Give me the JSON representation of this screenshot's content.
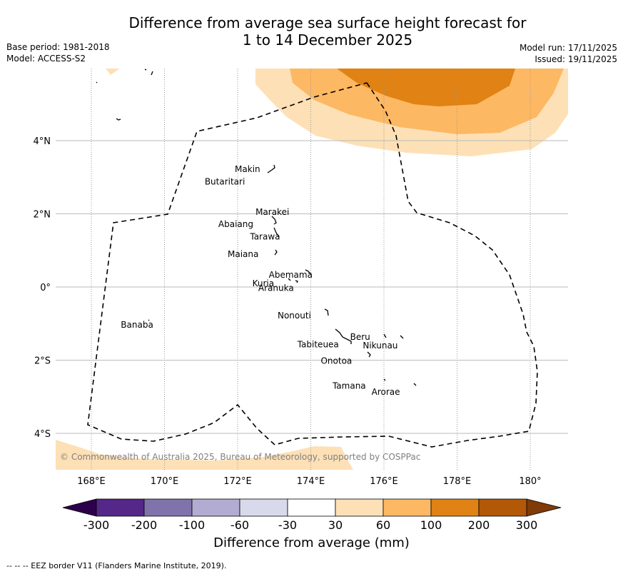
{
  "title_line1": "Difference from average sea surface height forecast for",
  "title_line2": "1 to 14 December 2025",
  "meta_left": {
    "base_period": "Base period: 1981-2018",
    "model": "Model: ACCESS-S2"
  },
  "meta_right": {
    "model_run": "Model run: 17/11/2025",
    "issued": "Issued: 19/11/2025"
  },
  "map": {
    "lon_range": [
      167,
      181
    ],
    "lat_range": [
      -5,
      5.97
    ],
    "lon_ticks": [
      {
        "value": 168,
        "label": "168°E"
      },
      {
        "value": 170,
        "label": "170°E"
      },
      {
        "value": 172,
        "label": "172°E"
      },
      {
        "value": 174,
        "label": "174°E"
      },
      {
        "value": 176,
        "label": "176°E"
      },
      {
        "value": 178,
        "label": "178°E"
      },
      {
        "value": 180,
        "label": "180°"
      }
    ],
    "lat_ticks": [
      {
        "value": 4,
        "label": "4°N"
      },
      {
        "value": 2,
        "label": "2°N"
      },
      {
        "value": 0,
        "label": "0°"
      },
      {
        "value": -2,
        "label": "2°S"
      },
      {
        "value": -4,
        "label": "4°S"
      }
    ],
    "places": [
      {
        "name": "Makin",
        "lon": 172.27,
        "lat": 3.22
      },
      {
        "name": "Butaritari",
        "lon": 171.65,
        "lat": 2.88
      },
      {
        "name": "Marakei",
        "lon": 172.95,
        "lat": 2.05
      },
      {
        "name": "Abaiang",
        "lon": 171.95,
        "lat": 1.72
      },
      {
        "name": "Tarawa",
        "lon": 172.75,
        "lat": 1.38
      },
      {
        "name": "Maiana",
        "lon": 172.15,
        "lat": 0.9
      },
      {
        "name": "Abemama",
        "lon": 173.45,
        "lat": 0.33
      },
      {
        "name": "Kuria",
        "lon": 172.7,
        "lat": 0.1
      },
      {
        "name": "Aranuka",
        "lon": 173.05,
        "lat": -0.03
      },
      {
        "name": "Nonouti",
        "lon": 173.55,
        "lat": -0.78
      },
      {
        "name": "Banaba",
        "lon": 169.25,
        "lat": -1.03
      },
      {
        "name": "Beru",
        "lon": 175.35,
        "lat": -1.37
      },
      {
        "name": "Tabiteuea",
        "lon": 174.2,
        "lat": -1.57
      },
      {
        "name": "Nikunau",
        "lon": 175.9,
        "lat": -1.6
      },
      {
        "name": "Onotoa",
        "lon": 174.7,
        "lat": -2.02
      },
      {
        "name": "Tamana",
        "lon": 175.05,
        "lat": -2.7
      },
      {
        "name": "Arorae",
        "lon": 176.05,
        "lat": -2.87
      }
    ],
    "copyright": "© Commonwealth of Australia 2025, Bureau of Meteorology, supported by COSPPac"
  },
  "colorbar": {
    "label": "Difference from average (mm)",
    "ticks": [
      "-300",
      "-200",
      "-100",
      "-60",
      "-30",
      "30",
      "60",
      "100",
      "200",
      "300"
    ],
    "under_color": "#2d004b",
    "over_color": "#7f3b08",
    "colors": [
      "#542788",
      "#8073ac",
      "#b2abd2",
      "#d8daeb",
      "#ffffff",
      "#fee0b6",
      "#fdb863",
      "#e08214",
      "#b35806"
    ]
  },
  "footnote": "--  --  -- EEZ border V11 (Flanders Marine Institute, 2019)."
}
